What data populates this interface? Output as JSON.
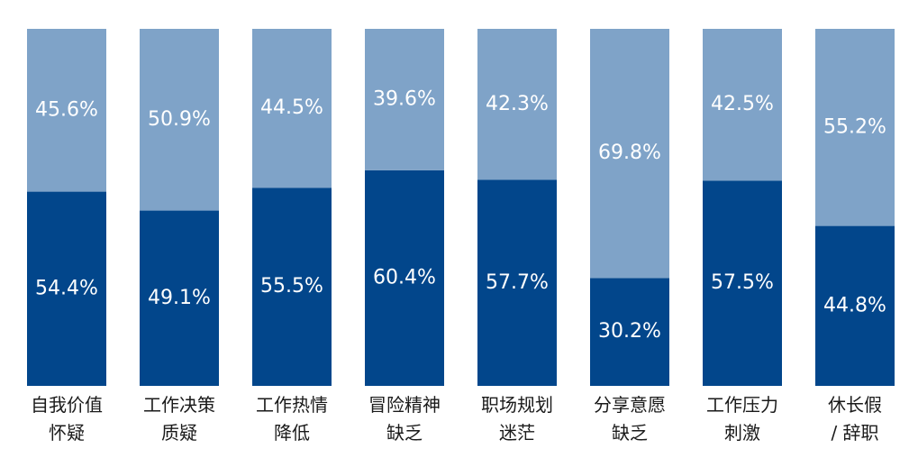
{
  "chart_data": {
    "type": "stacked_bar",
    "categories": [
      "自我价值\n怀疑",
      "工作决策\n质疑",
      "工作热情\n降低",
      "冒险精神\n缺乏",
      "职场规划\n迷茫",
      "分享意愿\n缺乏",
      "工作压力\n刺激",
      "休长假\n/ 辞职"
    ],
    "series": [
      {
        "color": "#02468b",
        "values": [
          54.4,
          49.1,
          55.5,
          60.4,
          57.7,
          30.2,
          57.5,
          44.8
        ],
        "value_labels": [
          "54.4%",
          "49.1%",
          "55.5%",
          "60.4%",
          "57.7%",
          "30.2%",
          "57.5%",
          "44.8%"
        ]
      },
      {
        "color": "#7fa3c8",
        "values": [
          45.6,
          50.9,
          44.5,
          39.6,
          42.3,
          69.8,
          42.5,
          55.2
        ],
        "value_labels": [
          "45.6%",
          "50.9%",
          "44.5%",
          "39.6%",
          "42.3%",
          "69.8%",
          "42.5%",
          "55.2%"
        ]
      }
    ],
    "ylim": [
      0,
      100
    ]
  }
}
